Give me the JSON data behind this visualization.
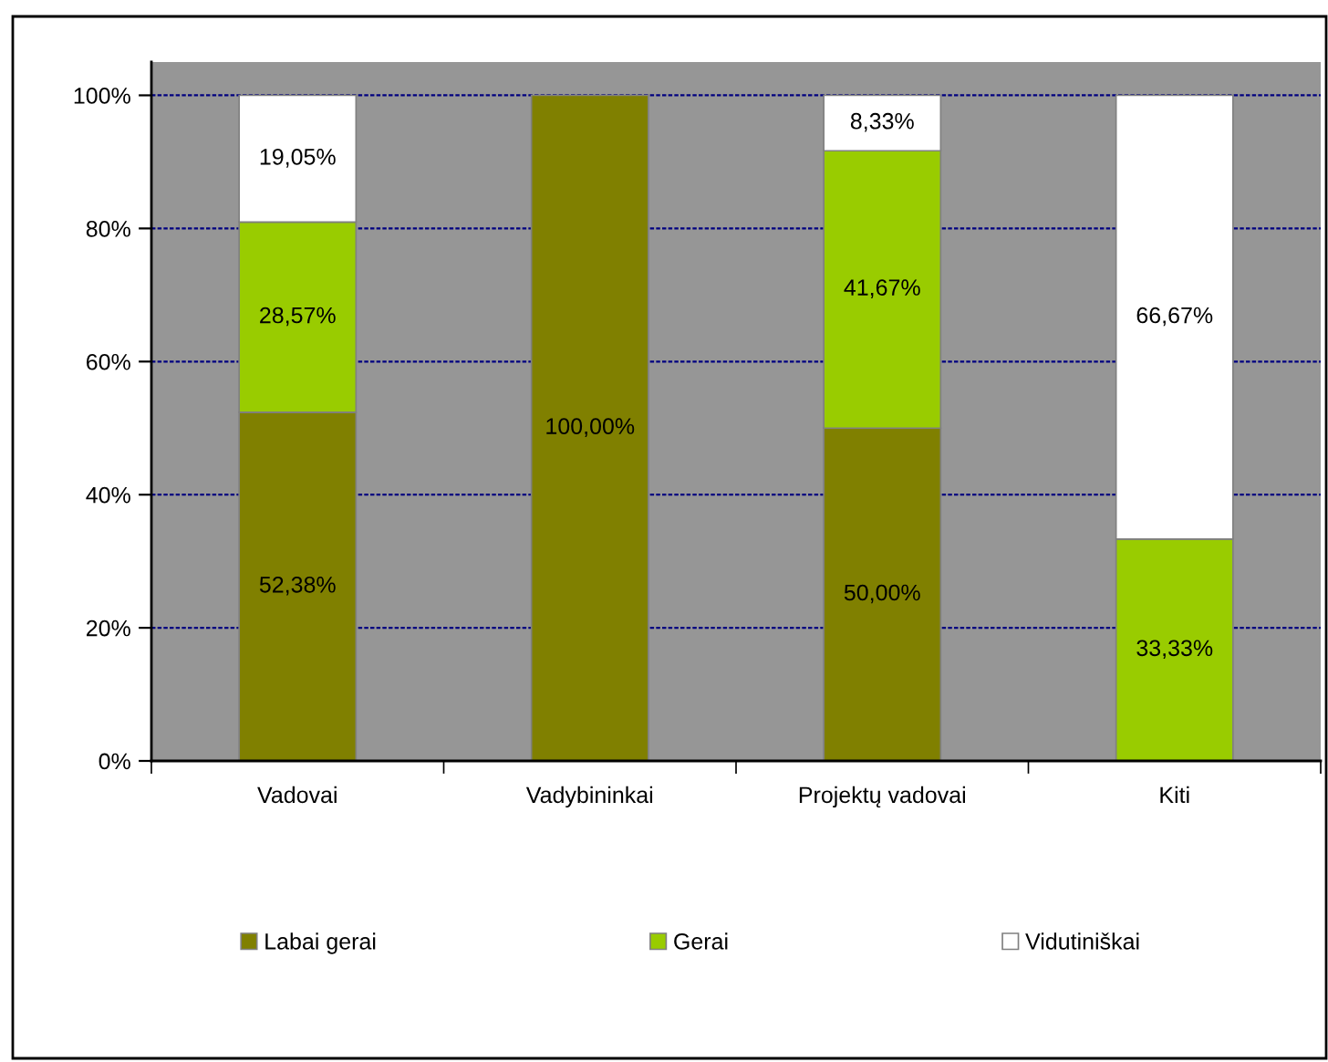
{
  "chart_data": {
    "type": "bar",
    "stacked": true,
    "categories": [
      "Vadovai",
      "Vadybininkai",
      "Projektų vadovai",
      "Kiti"
    ],
    "series": [
      {
        "name": "Labai gerai",
        "color": "#808000",
        "values": [
          52.38,
          100,
          50,
          null
        ],
        "value_labels": [
          "52,38%",
          "100,00%",
          "50,00%",
          null
        ]
      },
      {
        "name": "Gerai",
        "color": "#99cc00",
        "values": [
          28.57,
          null,
          41.67,
          33.33
        ],
        "value_labels": [
          "28,57%",
          null,
          "41,67%",
          "33,33%"
        ]
      },
      {
        "name": "Vidutiniškai",
        "color": "#ffffff",
        "values": [
          19.05,
          null,
          8.33,
          66.67
        ],
        "value_labels": [
          "19,05%",
          null,
          "8,33%",
          "66,67%"
        ]
      }
    ],
    "ylim": [
      0,
      105
    ],
    "yticks": [
      {
        "value": 0,
        "label": "0%"
      },
      {
        "value": 20,
        "label": "20%"
      },
      {
        "value": 40,
        "label": "40%"
      },
      {
        "value": 60,
        "label": "60%"
      },
      {
        "value": 80,
        "label": "80%"
      },
      {
        "value": 100,
        "label": "100%"
      }
    ],
    "grid": "y",
    "legend": "bottom"
  }
}
